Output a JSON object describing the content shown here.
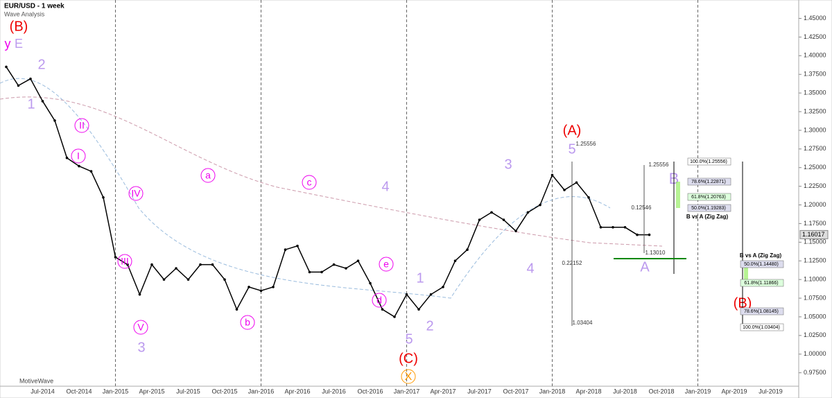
{
  "chart_data": {
    "type": "line",
    "title": "EUR/USD - 1 week",
    "subtitle": "Wave Analysis",
    "footer": "MotiveWave",
    "categories": [
      null,
      null,
      null,
      "Jul-2014",
      null,
      null,
      "Oct-2014",
      null,
      null,
      "Jan-2015",
      null,
      null,
      "Apr-2015",
      null,
      null,
      "Jul-2015",
      null,
      null,
      "Oct-2015",
      null,
      null,
      "Jan-2016",
      null,
      null,
      "Apr-2016",
      null,
      null,
      "Jul-2016",
      null,
      null,
      "Oct-2016",
      null,
      null,
      "Jan-2017",
      null,
      null,
      "Apr-2017",
      null,
      null,
      "Jul-2017",
      null,
      null,
      "Oct-2017",
      null,
      null,
      "Jan-2018",
      null,
      null,
      "Apr-2018",
      null,
      null,
      "Jul-2018",
      null,
      null,
      "Oct-2018",
      null,
      null,
      "Jan-2019",
      null,
      null,
      "Apr-2019",
      null,
      null,
      "Jul-2019",
      null
    ],
    "values": [
      1.385,
      1.36,
      1.369,
      1.339,
      1.313,
      1.263,
      1.252,
      1.245,
      1.21,
      1.13,
      1.12,
      1.08,
      1.12,
      1.1,
      1.115,
      1.1,
      1.12,
      1.12,
      1.1,
      1.06,
      1.09,
      1.085,
      1.09,
      1.14,
      1.145,
      1.11,
      1.11,
      1.12,
      1.115,
      1.125,
      1.095,
      1.06,
      1.05,
      1.08,
      1.06,
      1.08,
      1.09,
      1.125,
      1.14,
      1.18,
      1.19,
      1.18,
      1.165,
      1.19,
      1.2,
      1.24,
      1.22,
      1.23,
      1.21,
      1.17,
      1.17,
      1.17,
      1.16,
      1.16,
      null,
      null,
      null,
      null,
      null,
      null,
      null,
      null,
      null,
      null,
      null
    ],
    "color": "#000000",
    "ylim": [
      0.957,
      1.47
    ],
    "yticks": [
      {
        "value": 0.975,
        "label": "0.97500"
      },
      {
        "value": 1.0,
        "label": "1.00000"
      },
      {
        "value": 1.025,
        "label": "1.02500"
      },
      {
        "value": 1.05,
        "label": "1.05000"
      },
      {
        "value": 1.075,
        "label": "1.07500"
      },
      {
        "value": 1.1,
        "label": "1.10000"
      },
      {
        "value": 1.125,
        "label": "1.12500"
      },
      {
        "value": 1.15,
        "label": "1.15000"
      },
      {
        "value": 1.175,
        "label": "1.17500"
      },
      {
        "value": 1.2,
        "label": "1.20000"
      },
      {
        "value": 1.225,
        "label": "1.22500"
      },
      {
        "value": 1.25,
        "label": "1.25000"
      },
      {
        "value": 1.275,
        "label": "1.27500"
      },
      {
        "value": 1.3,
        "label": "1.30000"
      },
      {
        "value": 1.325,
        "label": "1.32500"
      },
      {
        "value": 1.35,
        "label": "1.35000"
      },
      {
        "value": 1.375,
        "label": "1.37500"
      },
      {
        "value": 1.4,
        "label": "1.40000"
      },
      {
        "value": 1.425,
        "label": "1.42500"
      },
      {
        "value": 1.45,
        "label": "1.45000"
      }
    ],
    "current_price": {
      "value": 1.16017,
      "label": "1.16017"
    },
    "annotations": [
      "(B)",
      "y",
      "E",
      "2",
      "1",
      "II",
      "I",
      "IV",
      "III",
      "V",
      "3",
      "a",
      "b",
      "c",
      "4",
      "d",
      "e",
      "1",
      "2",
      "5",
      "(C)",
      "X",
      "3",
      "4",
      "(A)",
      "5",
      "B",
      "A",
      "(B)"
    ],
    "fib_labels": [
      "100.0%(1.25556)",
      "78.6%(1.22871)",
      "61.8%(1.20763)",
      "50.0%(1.19283)",
      "B vs A (Zig Zag)",
      "B vs A (Zig Zag)",
      "50.0%(1.14480)",
      "61.8%(1.11866)",
      "78.6%(1.08145)",
      "100.0%(1.03404)"
    ],
    "measure_labels": [
      "1.25556",
      "0.12546",
      "0.22152",
      "1.13010",
      "1.03404",
      "1.25556"
    ]
  }
}
